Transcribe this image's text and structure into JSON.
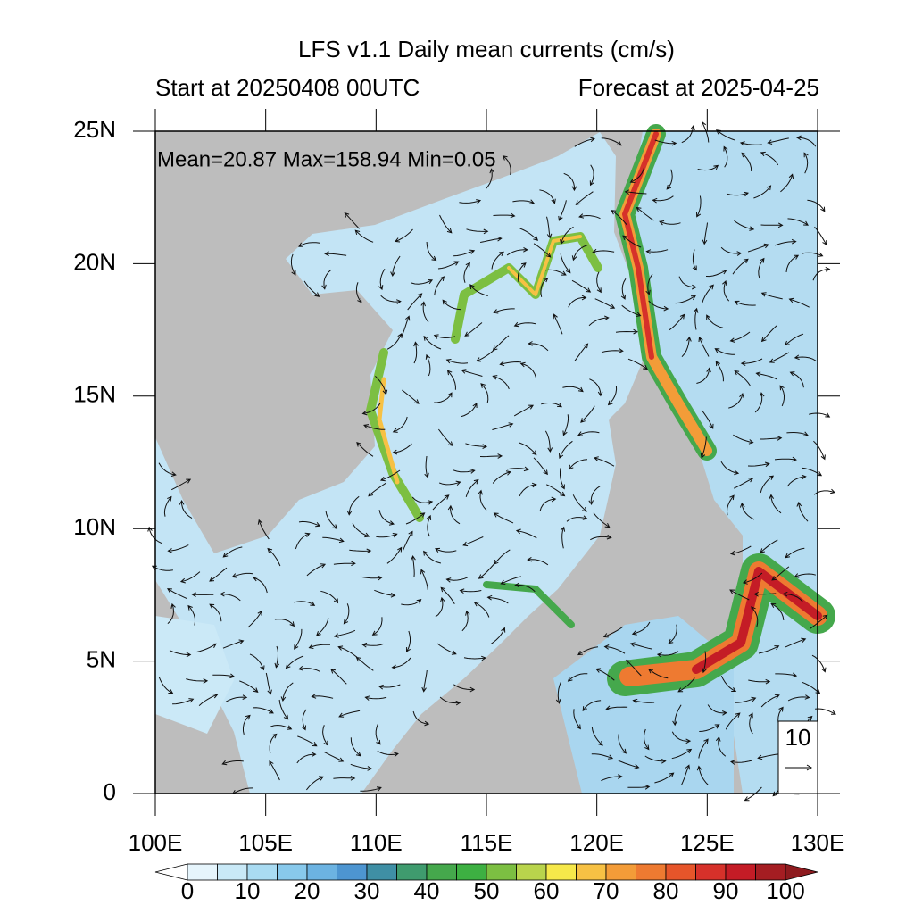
{
  "chart_data": {
    "type": "map",
    "title": "LFS v1.1 Daily mean currents (cm/s)",
    "subtitle_left": "Start at 20250408 00UTC",
    "subtitle_right": "Forecast at 2025-04-25",
    "stats": "Mean=20.87  Max=158.94  Min=0.05",
    "xlim": [
      100,
      130
    ],
    "ylim": [
      0,
      25
    ],
    "xticks": [
      {
        "value": 100,
        "label": "100E"
      },
      {
        "value": 105,
        "label": "105E"
      },
      {
        "value": 110,
        "label": "110E"
      },
      {
        "value": 115,
        "label": "115E"
      },
      {
        "value": 120,
        "label": "120E"
      },
      {
        "value": 125,
        "label": "125E"
      },
      {
        "value": 130,
        "label": "130E"
      }
    ],
    "yticks": [
      0,
      {
        "value": 5,
        "label": "5N"
      },
      {
        "value": 10,
        "label": "10N"
      },
      {
        "value": 15,
        "label": "15N"
      },
      {
        "value": 20,
        "label": "20N"
      },
      {
        "value": 25,
        "label": "25N"
      }
    ],
    "reference_vector": 10,
    "land_color": "#bdbdbd",
    "colorbar": {
      "levels": [
        0,
        5,
        10,
        15,
        20,
        25,
        30,
        35,
        40,
        45,
        50,
        55,
        60,
        65,
        70,
        75,
        80,
        85,
        90,
        95,
        100
      ],
      "colors": [
        "#ffffff",
        "#e6f5fc",
        "#c9e9f7",
        "#a9dbf2",
        "#88c9ec",
        "#6cb3e2",
        "#4d95d1",
        "#3f8fa5",
        "#3f9b6e",
        "#45a84c",
        "#3db042",
        "#7cbf42",
        "#b9d44c",
        "#f6e84a",
        "#f7c144",
        "#f39c38",
        "#ee7a31",
        "#e6552a",
        "#d6312a",
        "#c41c26",
        "#a51d22",
        "#8e1a1e"
      ],
      "ticks": [
        0,
        10,
        20,
        30,
        40,
        50,
        60,
        70,
        80,
        90,
        100
      ]
    }
  }
}
